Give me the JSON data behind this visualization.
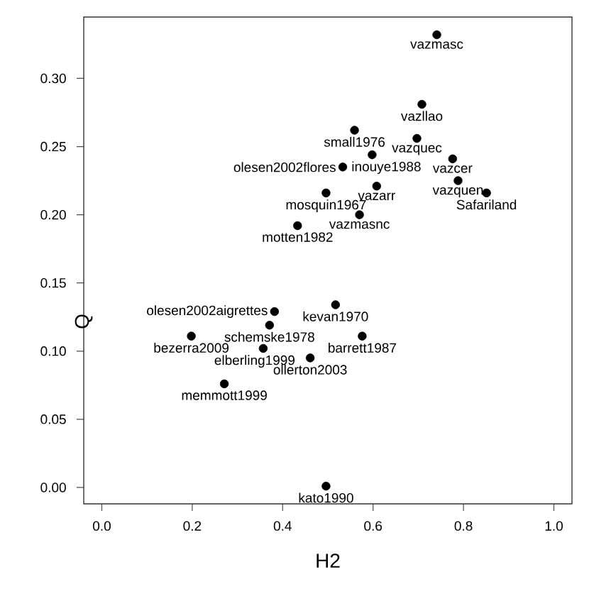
{
  "chart_data": {
    "type": "scatter",
    "xlabel": "H2",
    "ylabel": "Q",
    "color": "#000000",
    "marker": "circle",
    "x": [
      0.741,
      0.708,
      0.559,
      0.697,
      0.598,
      0.776,
      0.533,
      0.788,
      0.608,
      0.496,
      0.851,
      0.57,
      0.433,
      0.517,
      0.382,
      0.371,
      0.198,
      0.576,
      0.357,
      0.461,
      0.271,
      0.496
    ],
    "values": [
      0.332,
      0.281,
      0.262,
      0.256,
      0.244,
      0.241,
      0.235,
      0.225,
      0.221,
      0.216,
      0.216,
      0.2,
      0.192,
      0.134,
      0.129,
      0.119,
      0.111,
      0.111,
      0.102,
      0.095,
      0.076,
      0.001
    ],
    "xlim": [
      -0.04,
      1.04
    ],
    "ylim": [
      -0.012,
      0.345
    ],
    "xticks": [
      {
        "value": 0,
        "label": "0.0"
      },
      0.2,
      0.4,
      0.6,
      0.8,
      {
        "value": 1,
        "label": "1.0"
      }
    ],
    "yticks": [
      {
        "value": 0,
        "label": "0.00"
      },
      0.05,
      {
        "value": 0.1,
        "label": "0.10"
      },
      0.15,
      {
        "value": 0.2,
        "label": "0.20"
      },
      0.25,
      {
        "value": 0.3,
        "label": "0.30"
      }
    ],
    "annotations": [
      {
        "text": "vazmasc",
        "x": 0.741,
        "y": 0.332
      },
      {
        "text": "vazllao",
        "x": 0.708,
        "y": 0.281
      },
      {
        "text": "small1976",
        "x": 0.559,
        "y": 0.262
      },
      {
        "text": "vazquec",
        "x": 0.697,
        "y": 0.256
      },
      {
        "text": "inouye1988",
        "x": 0.598,
        "y": 0.244
      },
      {
        "text": "vazcer",
        "x": 0.776,
        "y": 0.241
      },
      {
        "text": "olesen2002flores",
        "x": 0.533,
        "y": 0.235
      },
      {
        "text": "vazquen",
        "x": 0.788,
        "y": 0.225
      },
      {
        "text": "vazarr",
        "x": 0.608,
        "y": 0.221
      },
      {
        "text": "mosquin1967",
        "x": 0.496,
        "y": 0.216
      },
      {
        "text": "Safariland",
        "x": 0.851,
        "y": 0.216
      },
      {
        "text": "vazmasnc",
        "x": 0.57,
        "y": 0.2
      },
      {
        "text": "motten1982",
        "x": 0.433,
        "y": 0.192
      },
      {
        "text": "kevan1970",
        "x": 0.517,
        "y": 0.134
      },
      {
        "text": "olesen2002aigrettes",
        "x": 0.382,
        "y": 0.129
      },
      {
        "text": "schemske1978",
        "x": 0.371,
        "y": 0.119
      },
      {
        "text": "bezerra2009",
        "x": 0.198,
        "y": 0.111
      },
      {
        "text": "barrett1987",
        "x": 0.576,
        "y": 0.111
      },
      {
        "text": "elberling1999",
        "x": 0.357,
        "y": 0.102
      },
      {
        "text": "ollerton2003",
        "x": 0.461,
        "y": 0.095
      },
      {
        "text": "memmott1999",
        "x": 0.271,
        "y": 0.076
      },
      {
        "text": "kato1990",
        "x": 0.496,
        "y": 0.001
      }
    ]
  }
}
